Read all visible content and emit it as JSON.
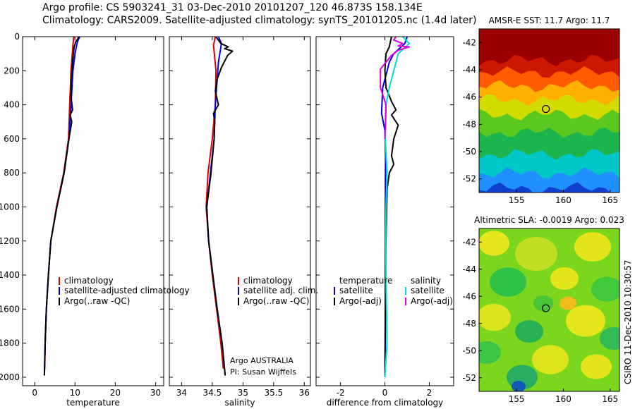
{
  "header": {
    "line1": "Argo profile: CS 5903241_31 03-Dec-2010 20101207_120 46.873S 158.134E",
    "line2": "Climatology: CARS2009. Satellite-adjusted climatology: synTS_20101205.nc (1.4d later)"
  },
  "colors": {
    "climatology": "#dd0000",
    "satellite": "#0000ee",
    "argo": "#000000",
    "sal_sat": "#00dddd",
    "sal_argo": "#dd00dd",
    "zero": "#999999"
  },
  "chart_data": [
    {
      "type": "line",
      "xlabel": "temperature",
      "ylabel": "",
      "xlim": [
        -3,
        32
      ],
      "ylim": [
        2050,
        0
      ],
      "xticks": [
        0,
        10,
        20,
        30
      ],
      "yticks": [
        0,
        200,
        400,
        600,
        800,
        1000,
        1200,
        1400,
        1600,
        1800,
        2000
      ],
      "legend": {
        "placement": "lower-right",
        "entries": [
          "climatology",
          "satellite-adjusted climatology",
          "Argo(..raw -QC)"
        ]
      },
      "series": [
        {
          "name": "climatology",
          "color": "climatology",
          "points": [
            [
              9.7,
              0
            ],
            [
              9.5,
              50
            ],
            [
              9.0,
              200
            ],
            [
              8.6,
              450
            ],
            [
              8.4,
              600
            ],
            [
              7.2,
              800
            ],
            [
              5.4,
              1000
            ],
            [
              4.0,
              1200
            ],
            [
              3.4,
              1400
            ],
            [
              2.9,
              1600
            ],
            [
              2.6,
              1800
            ],
            [
              2.5,
              1950
            ]
          ]
        },
        {
          "name": "satellite-adjusted climatology",
          "color": "satellite",
          "points": [
            [
              11.2,
              0
            ],
            [
              10.6,
              30
            ],
            [
              10.0,
              100
            ],
            [
              9.5,
              200
            ],
            [
              8.9,
              450
            ],
            [
              8.5,
              600
            ],
            [
              7.3,
              800
            ],
            [
              5.5,
              1000
            ],
            [
              4.0,
              1200
            ],
            [
              3.4,
              1400
            ],
            [
              2.9,
              1600
            ],
            [
              2.6,
              1800
            ],
            [
              2.4,
              1990
            ]
          ]
        },
        {
          "name": "Argo(..raw -QC)",
          "color": "argo",
          "points": [
            [
              11.0,
              0
            ],
            [
              10.2,
              30
            ],
            [
              9.8,
              60
            ],
            [
              9.6,
              100
            ],
            [
              9.2,
              200
            ],
            [
              9.0,
              350
            ],
            [
              9.4,
              430
            ],
            [
              8.8,
              460
            ],
            [
              9.2,
              500
            ],
            [
              8.5,
              600
            ],
            [
              7.3,
              800
            ],
            [
              5.5,
              1000
            ],
            [
              4.0,
              1200
            ],
            [
              3.4,
              1400
            ],
            [
              2.9,
              1600
            ],
            [
              2.6,
              1800
            ],
            [
              2.4,
              1990
            ]
          ]
        }
      ]
    },
    {
      "type": "line",
      "xlabel": "salinity",
      "ylabel": "",
      "xlim": [
        33.8,
        36.1
      ],
      "ylim": [
        2050,
        0
      ],
      "xticks": [
        34,
        34.5,
        35,
        35.5,
        36
      ],
      "legend": {
        "placement": "lower-right",
        "entries": [
          "climatology",
          "satellite adj. clim.",
          "Argo(..raw -QC)"
        ]
      },
      "annotations": [
        "Argo AUSTRALIA",
        "PI: Susan Wijffels"
      ],
      "series": [
        {
          "name": "climatology",
          "color": "climatology",
          "points": [
            [
              34.55,
              0
            ],
            [
              34.52,
              50
            ],
            [
              34.56,
              200
            ],
            [
              34.55,
              400
            ],
            [
              34.5,
              600
            ],
            [
              34.43,
              800
            ],
            [
              34.4,
              1000
            ],
            [
              34.44,
              1200
            ],
            [
              34.5,
              1400
            ],
            [
              34.57,
              1600
            ],
            [
              34.64,
              1800
            ],
            [
              34.68,
              1950
            ]
          ]
        },
        {
          "name": "satellite adj. clim.",
          "color": "satellite",
          "points": [
            [
              34.6,
              0
            ],
            [
              34.65,
              40
            ],
            [
              34.6,
              150
            ],
            [
              34.55,
              400
            ],
            [
              34.53,
              600
            ],
            [
              34.47,
              800
            ],
            [
              34.41,
              1000
            ],
            [
              34.44,
              1200
            ],
            [
              34.51,
              1400
            ],
            [
              34.58,
              1600
            ],
            [
              34.66,
              1800
            ],
            [
              34.71,
              1990
            ]
          ]
        },
        {
          "name": "Argo(..raw -QC)",
          "color": "argo",
          "points": [
            [
              34.56,
              0
            ],
            [
              34.58,
              10
            ],
            [
              34.64,
              40
            ],
            [
              34.76,
              60
            ],
            [
              34.7,
              70
            ],
            [
              34.83,
              85
            ],
            [
              34.75,
              110
            ],
            [
              34.65,
              180
            ],
            [
              34.58,
              250
            ],
            [
              34.55,
              320
            ],
            [
              34.6,
              400
            ],
            [
              34.52,
              450
            ],
            [
              34.54,
              500
            ],
            [
              34.53,
              600
            ],
            [
              34.48,
              800
            ],
            [
              34.41,
              1000
            ],
            [
              34.44,
              1200
            ],
            [
              34.51,
              1400
            ],
            [
              34.58,
              1600
            ],
            [
              34.66,
              1800
            ],
            [
              34.71,
              1990
            ]
          ]
        }
      ]
    },
    {
      "type": "line",
      "xlabel": "difference from climatology",
      "ylabel": "",
      "xlim": [
        -3.1,
        3.1
      ],
      "ylim": [
        2050,
        0
      ],
      "xticks": [
        -2,
        0,
        2
      ],
      "legend": {
        "placement": "lower",
        "entries": [
          "temperature",
          "satellite",
          "Argo(-adj)",
          "salinity",
          "satellite",
          "Argo(-adj)"
        ]
      },
      "series": [
        {
          "name": "satellite",
          "color": "satellite",
          "points": [
            [
              1.0,
              0
            ],
            [
              0.9,
              40
            ],
            [
              0.4,
              100
            ],
            [
              0.2,
              150
            ],
            [
              -0.1,
              300
            ],
            [
              -0.15,
              450
            ],
            [
              0,
              550
            ],
            [
              0.03,
              700
            ],
            [
              0.02,
              1000
            ],
            [
              0.02,
              1400
            ],
            [
              0.02,
              1800
            ],
            [
              0.0,
              2000
            ]
          ]
        },
        {
          "name": "Argo(-adj)",
          "color": "argo",
          "points": [
            [
              0.3,
              0
            ],
            [
              0.2,
              60
            ],
            [
              0.05,
              100
            ],
            [
              0.0,
              200
            ],
            [
              0.05,
              300
            ],
            [
              0.3,
              380
            ],
            [
              0.5,
              430
            ],
            [
              0.3,
              460
            ],
            [
              0.6,
              520
            ],
            [
              0.4,
              600
            ],
            [
              0.3,
              700
            ],
            [
              0.4,
              750
            ],
            [
              0.2,
              800
            ],
            [
              0.1,
              900
            ],
            [
              0.05,
              1200
            ],
            [
              0.02,
              1600
            ],
            [
              0.0,
              2000
            ]
          ]
        },
        {
          "name": "satellite",
          "color": "sal_sat",
          "points": [
            [
              0.8,
              0
            ],
            [
              1.1,
              40
            ],
            [
              0.6,
              100
            ],
            [
              0.4,
              200
            ],
            [
              0.2,
              300
            ],
            [
              0.05,
              400
            ],
            [
              0.02,
              600
            ],
            [
              0.1,
              800
            ],
            [
              0.05,
              1000
            ],
            [
              0.04,
              1200
            ],
            [
              0.05,
              1400
            ],
            [
              0.1,
              1800
            ],
            [
              0.0,
              2000
            ]
          ]
        },
        {
          "name": "Argo(-adj)",
          "color": "sal_argo",
          "points": [
            [
              0.5,
              0
            ],
            [
              0.4,
              20
            ],
            [
              0.8,
              40
            ],
            [
              0.6,
              55
            ],
            [
              1.1,
              60
            ],
            [
              0.6,
              80
            ],
            [
              0.3,
              110
            ],
            [
              -0.2,
              190
            ],
            [
              -0.2,
              300
            ],
            [
              0.05,
              400
            ],
            [
              0.0,
              600
            ]
          ]
        }
      ]
    },
    {
      "type": "heatmap",
      "title": "AMSR-E SST: 11.7 Argo: 11.7",
      "xlim": [
        151,
        166
      ],
      "ylim": [
        -53,
        -41
      ],
      "xticks": [
        155,
        160,
        165
      ],
      "yticks": [
        -42,
        -44,
        -46,
        -48,
        -50,
        -52
      ],
      "bands": [
        {
          "lat": -42,
          "color": "#9a0000"
        },
        {
          "lat": -43.3,
          "color": "#cc1800"
        },
        {
          "lat": -44.2,
          "color": "#ff5c00"
        },
        {
          "lat": -45.2,
          "color": "#ffb000"
        },
        {
          "lat": -46.2,
          "color": "#d2dc00"
        },
        {
          "lat": -47.3,
          "color": "#5bc820"
        },
        {
          "lat": -48.6,
          "color": "#1cb44c"
        },
        {
          "lat": -50.2,
          "color": "#00c8c8"
        },
        {
          "lat": -51.6,
          "color": "#2090ff"
        },
        {
          "lat": -52.7,
          "color": "#1040d0"
        }
      ],
      "marker": {
        "lon": 158.134,
        "lat": -46.873
      }
    },
    {
      "type": "heatmap",
      "title": "Altimetric SLA: -0.0019 Argo: 0.023",
      "xlim": [
        151,
        166
      ],
      "ylim": [
        -53,
        -41
      ],
      "xticks": [
        155,
        160,
        165
      ],
      "yticks": [
        -42,
        -44,
        -46,
        -48,
        -50,
        -52
      ],
      "marker": {
        "lon": 158.134,
        "lat": -46.873
      }
    }
  ],
  "credits": {
    "argo": "Argo AUSTRALIA",
    "pi": "PI: Susan Wijffels",
    "stamp": "CSIRO 11-Dec-2010 10:30:57"
  }
}
